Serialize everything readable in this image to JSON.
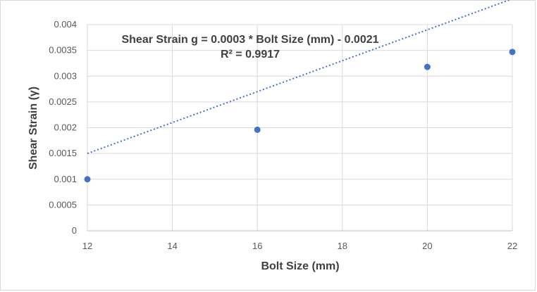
{
  "chart_data": {
    "type": "scatter",
    "title": "",
    "xlabel": "Bolt Size (mm)",
    "ylabel": "Shear Strain (γ)",
    "xlim": [
      12,
      22
    ],
    "ylim": [
      0,
      0.004
    ],
    "xticks": [
      "12",
      "14",
      "16",
      "18",
      "20",
      "22"
    ],
    "yticks": [
      "0",
      "0.0005",
      "0.001",
      "0.0015",
      "0.002",
      "0.0025",
      "0.003",
      "0.0035",
      "0.004"
    ],
    "grid": true,
    "legend": "none",
    "series": [
      {
        "x": [
          12,
          16,
          20,
          22
        ],
        "y": [
          0.001,
          0.00196,
          0.00318,
          0.00347
        ],
        "color": "#4472c4"
      }
    ],
    "trendline": {
      "type": "linear",
      "slope": 0.0003,
      "intercept": -0.0021,
      "x_range": [
        12,
        22
      ],
      "style": "dotted",
      "color": "#4472c4"
    },
    "annotations": {
      "equation": "Shear Strain g = 0.0003 * Bolt Size (mm) - 0.0021",
      "r_squared": "R² = 0.9917"
    }
  }
}
